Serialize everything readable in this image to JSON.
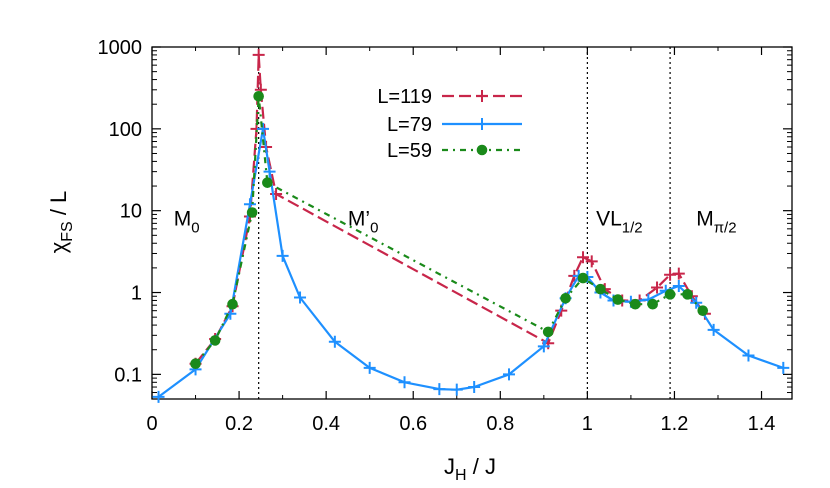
{
  "chart_data": {
    "type": "line",
    "xlabel_main": "J",
    "xlabel_sub": "H",
    "xlabel_rest": " / J",
    "ylabel_main": "χ",
    "ylabel_sub": "FS",
    "ylabel_rest": " / L",
    "x_ticks": [
      {
        "v": 0,
        "label": "0"
      },
      {
        "v": 0.2,
        "label": "0.2"
      },
      {
        "v": 0.4,
        "label": "0.4"
      },
      {
        "v": 0.6,
        "label": "0.6"
      },
      {
        "v": 0.8,
        "label": "0.8"
      },
      {
        "v": 1.0,
        "label": "1"
      },
      {
        "v": 1.2,
        "label": "1.2"
      },
      {
        "v": 1.4,
        "label": "1.4"
      }
    ],
    "y_ticks": [
      {
        "v": 0.1,
        "label": "0.1"
      },
      {
        "v": 1,
        "label": "1"
      },
      {
        "v": 10,
        "label": "10"
      },
      {
        "v": 100,
        "label": "100"
      },
      {
        "v": 1000,
        "label": "1000"
      }
    ],
    "xlim": [
      0,
      1.47
    ],
    "ylim": [
      0.05,
      1000
    ],
    "yscale": "log",
    "legend_position": "top-center",
    "vlines": [
      0.245,
      1.0,
      1.19
    ],
    "regions": [
      {
        "main": "M",
        "sub": "0",
        "x": 0.05,
        "y": 8
      },
      {
        "main": "M’",
        "sub": "0",
        "x": 0.45,
        "y": 8
      },
      {
        "main": "VL",
        "sub": "1/2",
        "x": 1.02,
        "y": 8
      },
      {
        "main": "M",
        "sub": "π/2",
        "x": 1.25,
        "y": 8
      }
    ],
    "series": [
      {
        "name": "L=119",
        "color": "#c8264a",
        "dash": "12,5",
        "marker": "plus",
        "x": [
          0.1,
          0.145,
          0.185,
          0.225,
          0.24,
          0.245,
          0.25,
          0.262,
          0.285,
          0.91,
          0.94,
          0.97,
          0.99,
          1.01,
          1.04,
          1.08,
          1.12,
          1.16,
          1.19,
          1.21,
          1.24,
          1.27
        ],
        "y": [
          0.135,
          0.27,
          0.68,
          8.5,
          100,
          800,
          300,
          60,
          16,
          0.24,
          0.6,
          1.6,
          2.7,
          2.4,
          1.1,
          0.8,
          0.8,
          1.15,
          1.65,
          1.7,
          0.9,
          0.55
        ]
      },
      {
        "name": "L=79",
        "color": "#1e90ff",
        "dash": "",
        "marker": "plus",
        "x": [
          0.015,
          0.1,
          0.18,
          0.225,
          0.255,
          0.27,
          0.3,
          0.34,
          0.42,
          0.5,
          0.58,
          0.66,
          0.7,
          0.74,
          0.82,
          0.9,
          0.95,
          0.98,
          1.0,
          1.03,
          1.06,
          1.1,
          1.14,
          1.18,
          1.21,
          1.25,
          1.29,
          1.37,
          1.45
        ],
        "y": [
          0.053,
          0.115,
          0.55,
          12,
          100,
          30,
          2.8,
          0.87,
          0.25,
          0.12,
          0.08,
          0.066,
          0.065,
          0.07,
          0.1,
          0.22,
          0.85,
          1.6,
          1.55,
          1.0,
          0.8,
          0.77,
          0.82,
          1.05,
          1.2,
          0.75,
          0.35,
          0.17,
          0.12
        ]
      },
      {
        "name": "L=59",
        "color": "#1a8a1a",
        "dash": "6,5,2,5",
        "marker": "dot",
        "x": [
          0.1,
          0.145,
          0.185,
          0.23,
          0.245,
          0.265,
          0.91,
          0.95,
          0.99,
          1.03,
          1.07,
          1.11,
          1.15,
          1.19,
          1.23,
          1.265
        ],
        "y": [
          0.135,
          0.26,
          0.72,
          9.5,
          250,
          22,
          0.33,
          0.85,
          1.5,
          1.1,
          0.82,
          0.72,
          0.72,
          0.95,
          0.95,
          0.6
        ]
      }
    ]
  }
}
